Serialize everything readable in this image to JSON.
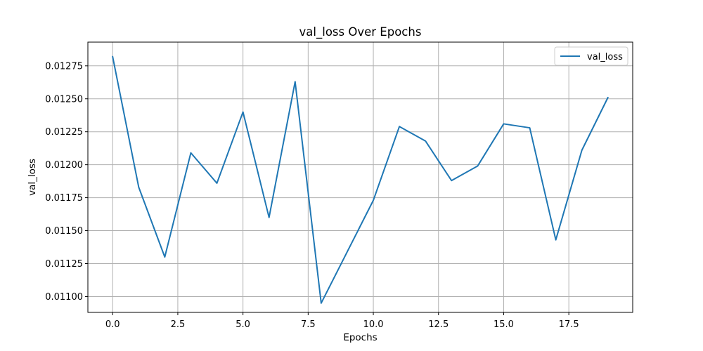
{
  "chart_data": {
    "type": "line",
    "title": "val_loss Over Epochs",
    "xlabel": "Epochs",
    "ylabel": "val_loss",
    "xlim": [
      -0.95,
      19.95
    ],
    "ylim": [
      0.01088,
      0.01293
    ],
    "xticks": [
      0,
      2.5,
      5,
      7.5,
      10,
      12.5,
      15,
      17.5
    ],
    "xtick_labels": [
      "0.0",
      "2.5",
      "5.0",
      "7.5",
      "10.0",
      "12.5",
      "15.0",
      "17.5"
    ],
    "yticks": [
      0.011,
      0.01125,
      0.0115,
      0.01175,
      0.012,
      0.01225,
      0.0125,
      0.01275
    ],
    "ytick_labels": [
      "0.01100",
      "0.01125",
      "0.01150",
      "0.01175",
      "0.01200",
      "0.01225",
      "0.01250",
      "0.01275"
    ],
    "grid": true,
    "legend_position": "top-right",
    "series": [
      {
        "name": "val_loss",
        "color": "#1f77b4",
        "x": [
          0,
          1,
          2,
          3,
          4,
          5,
          6,
          7,
          8,
          9,
          10,
          11,
          12,
          13,
          14,
          15,
          16,
          17,
          18,
          19
        ],
        "values": [
          0.01282,
          0.01183,
          0.0113,
          0.01209,
          0.01186,
          0.0124,
          0.0116,
          0.01263,
          0.01095,
          0.01134,
          0.01173,
          0.01229,
          0.01218,
          0.01188,
          0.01199,
          0.01231,
          0.01228,
          0.01143,
          0.01211,
          0.01251
        ]
      }
    ]
  }
}
